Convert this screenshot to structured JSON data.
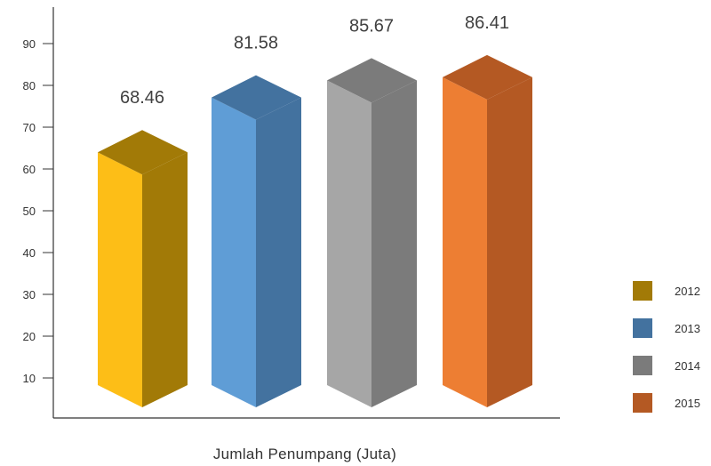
{
  "chart_data": {
    "type": "bar",
    "categories": [
      "2012",
      "2013",
      "2014",
      "2015"
    ],
    "values": [
      68.46,
      81.58,
      85.67,
      86.41
    ],
    "value_labels": [
      "68.46",
      "81.58",
      "85.67",
      "86.41"
    ],
    "title": "",
    "xlabel": "Jumlah Penumpang (Juta)",
    "ylabel": "",
    "yticks": [
      "10",
      "20",
      "30",
      "40",
      "50",
      "60",
      "70",
      "80",
      "90"
    ],
    "ylim": [
      0,
      100
    ],
    "grid": false,
    "legend": "right",
    "series": [
      {
        "name": "2012",
        "color": "#a27a07",
        "front": "#fdbe17"
      },
      {
        "name": "2013",
        "color": "#43729f",
        "front": "#5f9dd6"
      },
      {
        "name": "2014",
        "color": "#7b7b7b",
        "front": "#a6a6a6"
      },
      {
        "name": "2015",
        "color": "#b45923",
        "front": "#ed7e33"
      }
    ]
  }
}
